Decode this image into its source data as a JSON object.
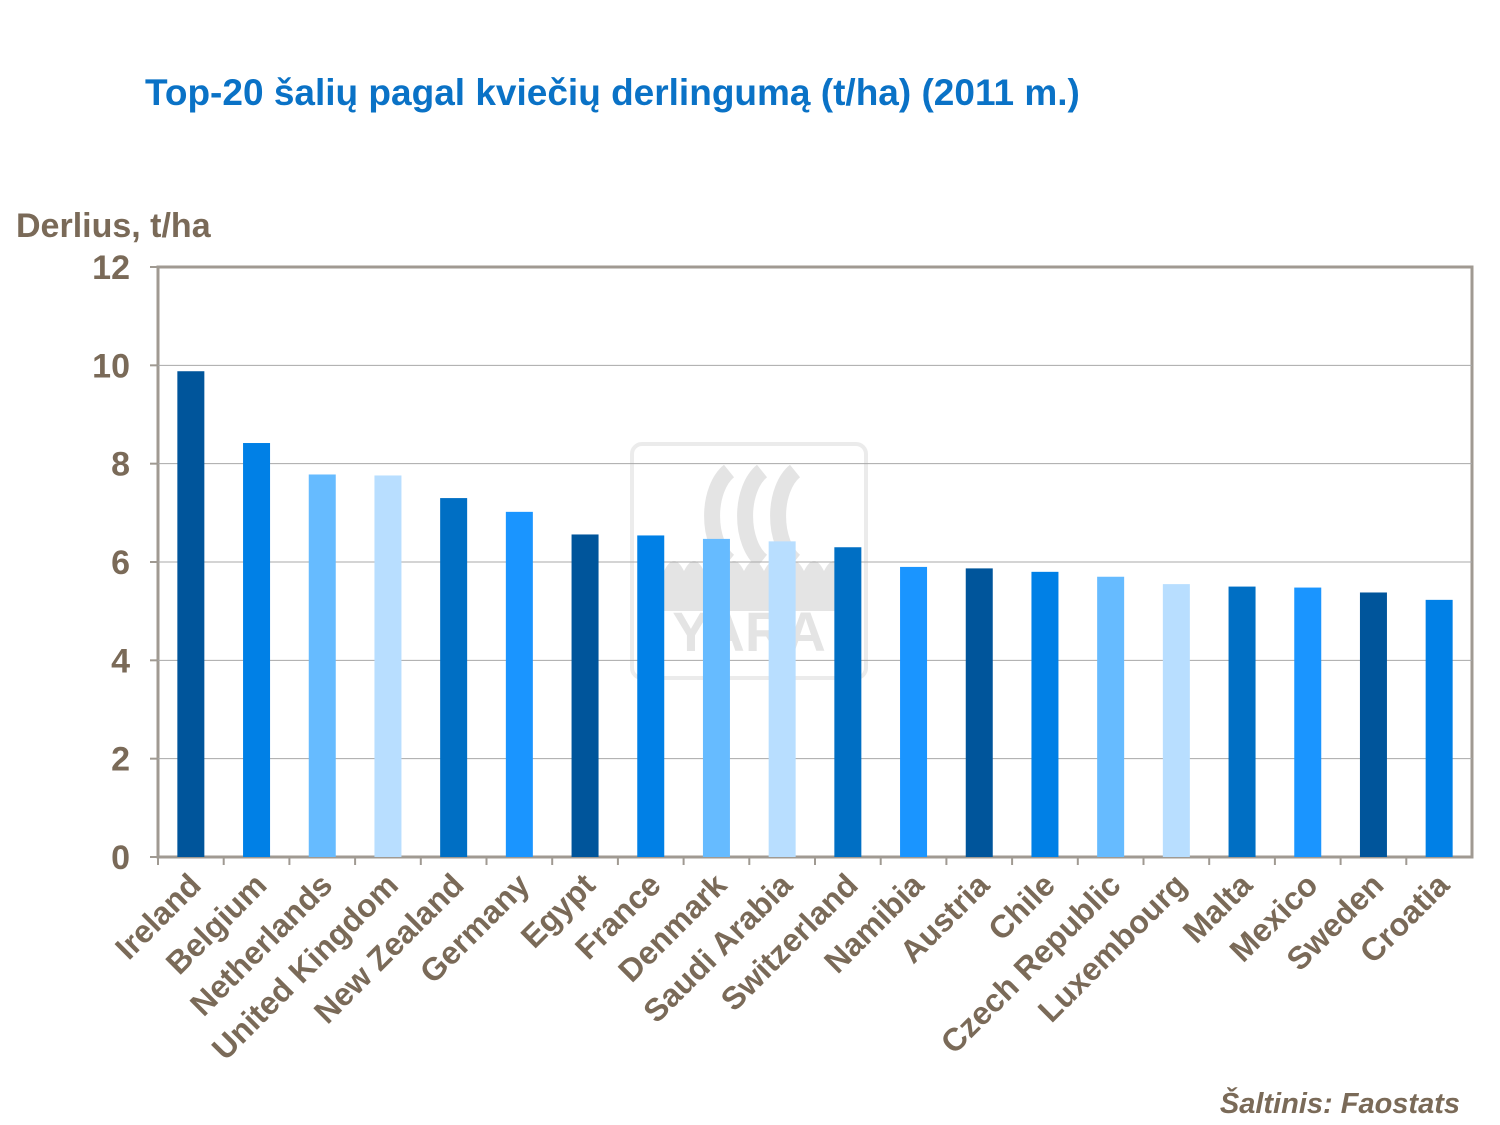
{
  "chart_data": {
    "type": "bar",
    "title": "Top-20 šalių pagal kviečių derlingumą (t/ha) (2011 m.)",
    "ylabel": "Derlius, t/ha",
    "xlabel": "",
    "ylim": [
      0,
      12
    ],
    "yticks": [
      0,
      2,
      4,
      6,
      8,
      10,
      12
    ],
    "grid": true,
    "categories": [
      "Ireland",
      "Belgium",
      "Netherlands",
      "United Kingdom",
      "New Zealand",
      "Germany",
      "Egypt",
      "France",
      "Denmark",
      "Saudi Arabia",
      "Switzerland",
      "Namibia",
      "Austria",
      "Chile",
      "Czech Republic",
      "Luxembourg",
      "Malta",
      "Mexico",
      "Sweden",
      "Croatia"
    ],
    "values": [
      9.88,
      8.42,
      7.78,
      7.76,
      7.3,
      7.02,
      6.56,
      6.54,
      6.47,
      6.42,
      6.3,
      5.9,
      5.87,
      5.8,
      5.7,
      5.55,
      5.5,
      5.48,
      5.38,
      5.23
    ],
    "colors": [
      "#00559b",
      "#0080e6",
      "#66bbff",
      "#b8deff",
      "#006fc4",
      "#1a95ff"
    ],
    "source": "Šaltinis:  Faostats",
    "watermark_text": "YARA"
  }
}
